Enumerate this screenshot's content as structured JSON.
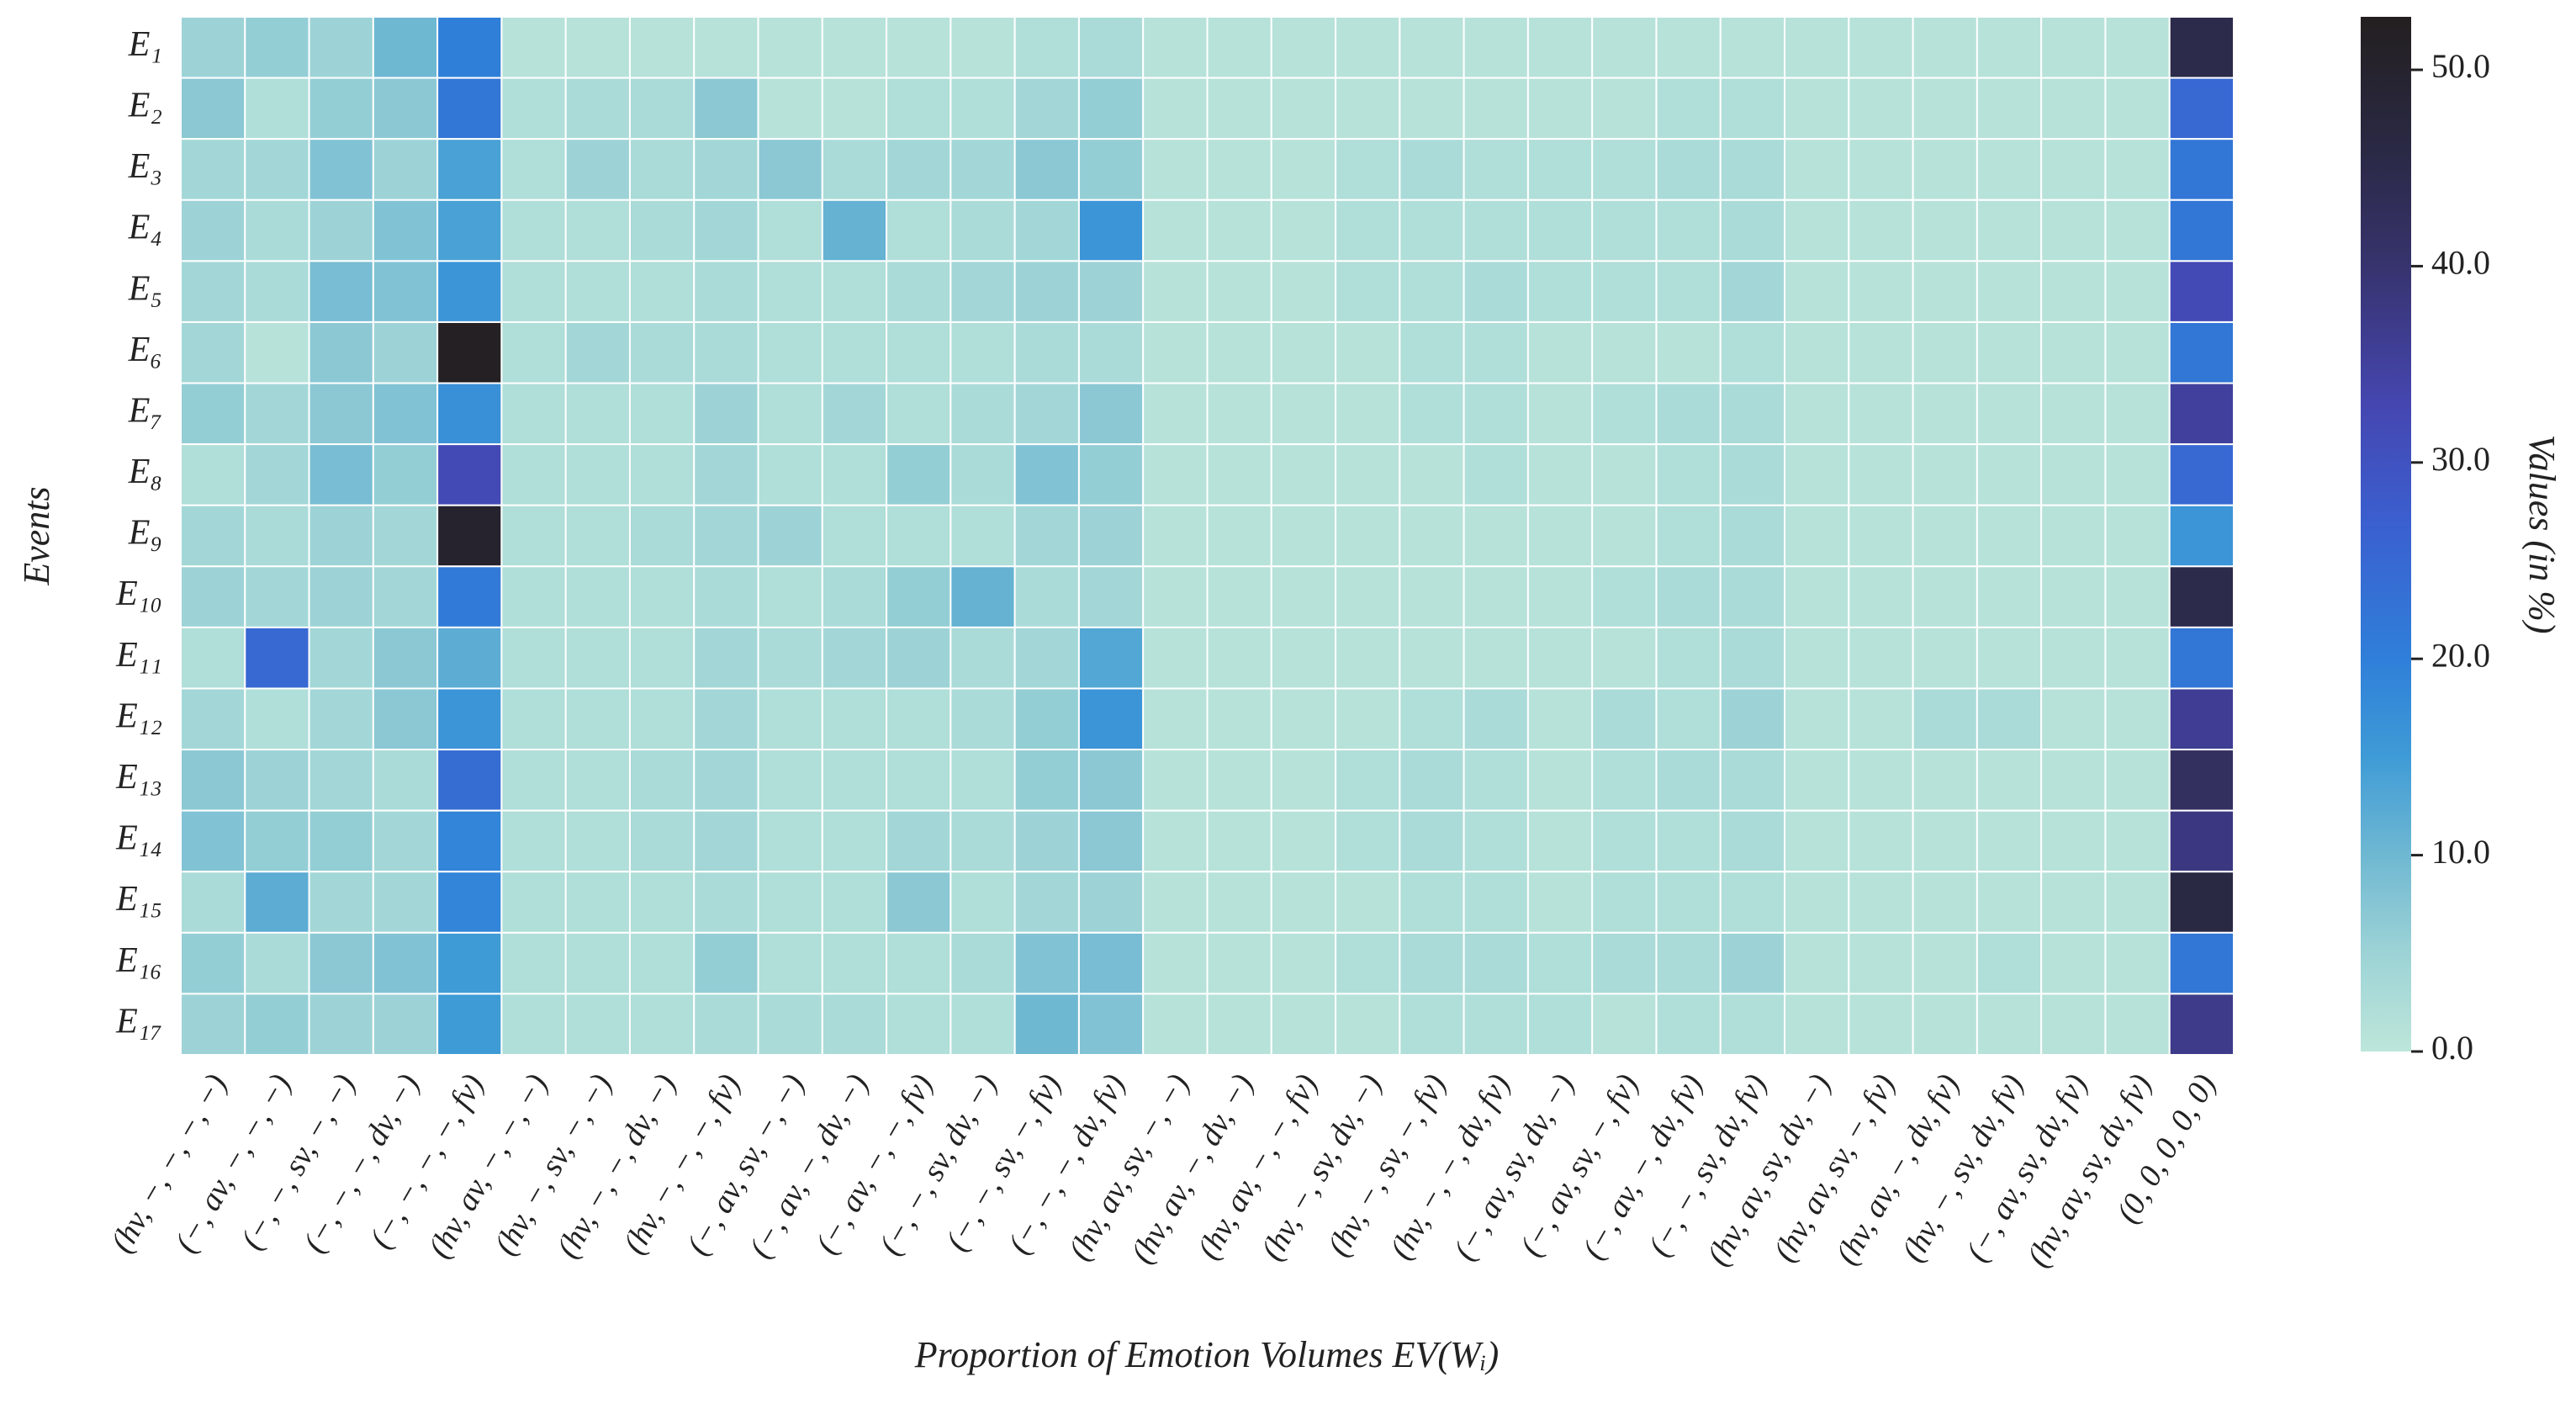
{
  "chart_data": {
    "type": "heatmap",
    "xlabel": "Proportion of Emotion Volumes EV(Wᵢ)",
    "ylabel": "Events",
    "colorbar_label": "Values (in %)",
    "x_categories": [
      "(hv, −, −, −, −)",
      "(−, av, −, −, −)",
      "(−, −, sv, −, −)",
      "(−, −, −, dv, −)",
      "(−, −, −, −, fv)",
      "(hv, av, −, −, −)",
      "(hv, −, sv, −, −)",
      "(hv, −, −, dv, −)",
      "(hv, −, −, −, fv)",
      "(−, av, sv, −, −)",
      "(−, av, −, dv, −)",
      "(−, av, −, −, fv)",
      "(−, −, sv, dv, −)",
      "(−, −, sv, −, fv)",
      "(−, −, −, dv, fv)",
      "(hv, av, sv, −, −)",
      "(hv, av, −, dv, −)",
      "(hv, av, −, −, fv)",
      "(hv, −, sv, dv, −)",
      "(hv, −, sv, −, fv)",
      "(hv, −, −, dv, fv)",
      "(−, av, sv, dv, −)",
      "(−, av, sv, −, fv)",
      "(−, av, −, dv, fv)",
      "(−, −, sv, dv, fv)",
      "(hv, av, sv, dv, −)",
      "(hv, av, sv, −, fv)",
      "(hv, av, −, dv, fv)",
      "(hv, −, sv, dv, fv)",
      "(−, av, sv, dv, fv)",
      "(hv, av, sv, dv, fv)",
      "(0, 0, 0, 0, 0)"
    ],
    "y_categories": [
      "E₁",
      "E₂",
      "E₃",
      "E₄",
      "E₅",
      "E₆",
      "E₇",
      "E₈",
      "E₉",
      "E₁₀",
      "E₁₁",
      "E₁₂",
      "E₁₃",
      "E₁₄",
      "E₁₅",
      "E₁₆",
      "E₁₇"
    ],
    "values": [
      [
        5,
        6,
        5,
        10,
        20,
        1,
        1,
        1,
        1,
        1,
        1,
        1,
        1,
        2,
        3,
        1,
        1,
        1,
        1,
        1,
        1,
        1,
        1,
        1,
        1,
        1,
        1,
        1,
        1,
        1,
        1,
        45
      ],
      [
        7,
        2,
        6,
        7,
        22,
        2,
        3,
        3,
        7,
        1,
        1,
        2,
        2,
        4,
        6,
        1,
        1,
        1,
        1,
        1,
        1,
        1,
        1,
        2,
        2,
        1,
        1,
        1,
        1,
        1,
        1,
        25
      ],
      [
        4,
        4,
        8,
        5,
        14,
        2,
        5,
        3,
        4,
        7,
        3,
        4,
        4,
        7,
        6,
        1,
        1,
        1,
        2,
        3,
        2,
        2,
        2,
        3,
        3,
        1,
        1,
        1,
        1,
        1,
        1,
        22
      ],
      [
        5,
        3,
        5,
        8,
        14,
        2,
        2,
        3,
        4,
        2,
        11,
        2,
        3,
        4,
        16,
        1,
        1,
        1,
        2,
        2,
        2,
        2,
        2,
        2,
        3,
        1,
        1,
        1,
        1,
        1,
        1,
        22
      ],
      [
        4,
        3,
        9,
        8,
        16,
        2,
        2,
        2,
        3,
        2,
        2,
        3,
        4,
        5,
        5,
        1,
        1,
        1,
        2,
        2,
        3,
        2,
        2,
        2,
        4,
        1,
        1,
        1,
        1,
        1,
        1,
        32
      ],
      [
        4,
        1,
        7,
        5,
        52,
        2,
        4,
        3,
        3,
        2,
        2,
        2,
        2,
        3,
        3,
        1,
        1,
        1,
        1,
        2,
        2,
        1,
        1,
        1,
        2,
        1,
        1,
        1,
        1,
        1,
        1,
        22
      ],
      [
        6,
        4,
        7,
        8,
        17,
        2,
        2,
        2,
        5,
        2,
        4,
        2,
        3,
        4,
        7,
        1,
        1,
        1,
        1,
        2,
        2,
        1,
        2,
        3,
        3,
        1,
        1,
        1,
        1,
        1,
        1,
        35
      ],
      [
        2,
        4,
        9,
        6,
        32,
        2,
        2,
        2,
        4,
        2,
        2,
        6,
        3,
        8,
        6,
        1,
        1,
        1,
        1,
        1,
        2,
        1,
        1,
        2,
        3,
        1,
        1,
        1,
        1,
        1,
        1,
        25
      ],
      [
        4,
        3,
        5,
        4,
        50,
        2,
        2,
        3,
        4,
        5,
        2,
        2,
        2,
        4,
        5,
        1,
        1,
        1,
        1,
        1,
        1,
        1,
        1,
        2,
        3,
        1,
        1,
        1,
        1,
        1,
        1,
        16
      ],
      [
        5,
        4,
        5,
        4,
        21,
        2,
        2,
        2,
        3,
        2,
        3,
        6,
        11,
        3,
        4,
        1,
        1,
        1,
        1,
        1,
        1,
        1,
        2,
        3,
        3,
        1,
        1,
        1,
        1,
        1,
        1,
        45
      ],
      [
        2,
        25,
        4,
        7,
        12,
        2,
        2,
        2,
        4,
        3,
        4,
        5,
        3,
        4,
        13,
        1,
        1,
        1,
        1,
        1,
        1,
        1,
        1,
        2,
        3,
        1,
        1,
        1,
        1,
        1,
        1,
        22
      ],
      [
        4,
        2,
        4,
        7,
        16,
        2,
        2,
        2,
        4,
        2,
        2,
        2,
        3,
        6,
        16,
        1,
        1,
        1,
        1,
        2,
        3,
        1,
        3,
        2,
        5,
        1,
        1,
        3,
        3,
        1,
        1,
        36
      ],
      [
        7,
        5,
        4,
        3,
        24,
        2,
        2,
        3,
        4,
        2,
        2,
        2,
        2,
        6,
        7,
        1,
        1,
        1,
        2,
        3,
        2,
        1,
        2,
        3,
        3,
        1,
        1,
        1,
        1,
        1,
        1,
        42
      ],
      [
        8,
        6,
        6,
        4,
        19,
        2,
        2,
        3,
        4,
        2,
        2,
        4,
        3,
        5,
        7,
        1,
        1,
        1,
        2,
        3,
        2,
        1,
        2,
        2,
        3,
        1,
        1,
        1,
        1,
        1,
        1,
        38
      ],
      [
        3,
        12,
        4,
        4,
        19,
        2,
        2,
        2,
        3,
        2,
        2,
        7,
        2,
        4,
        5,
        1,
        1,
        1,
        1,
        2,
        2,
        1,
        2,
        2,
        2,
        1,
        1,
        1,
        1,
        1,
        1,
        46
      ],
      [
        6,
        3,
        7,
        8,
        15,
        2,
        2,
        2,
        6,
        2,
        2,
        2,
        3,
        8,
        9,
        1,
        1,
        1,
        2,
        3,
        3,
        2,
        3,
        3,
        5,
        1,
        1,
        1,
        2,
        1,
        1,
        22
      ],
      [
        5,
        6,
        5,
        5,
        15,
        2,
        2,
        2,
        3,
        3,
        3,
        2,
        2,
        10,
        8,
        1,
        1,
        1,
        1,
        2,
        2,
        2,
        1,
        2,
        2,
        1,
        1,
        1,
        1,
        1,
        1,
        37
      ]
    ],
    "clim": [
      0,
      52.7
    ],
    "cticks": [
      {
        "value": 0,
        "label": "0.0"
      },
      {
        "value": 10,
        "label": "10.0"
      },
      {
        "value": 20,
        "label": "20.0"
      },
      {
        "value": 30,
        "label": "30.0"
      },
      {
        "value": 40,
        "label": "40.0"
      },
      {
        "value": 50,
        "label": "50.0"
      }
    ],
    "colorscale": [
      {
        "value": 0,
        "color": "#bde6da"
      },
      {
        "value": 5,
        "color": "#9dd3d6"
      },
      {
        "value": 10,
        "color": "#6fb8d2"
      },
      {
        "value": 15,
        "color": "#3f9bd6"
      },
      {
        "value": 20,
        "color": "#2f7fd9"
      },
      {
        "value": 27,
        "color": "#3b5fcf"
      },
      {
        "value": 33,
        "color": "#4546b0"
      },
      {
        "value": 40,
        "color": "#37336e"
      },
      {
        "value": 46,
        "color": "#2a2944"
      },
      {
        "value": 52.7,
        "color": "#231f1f"
      }
    ],
    "cell_border": "#ffffff"
  }
}
